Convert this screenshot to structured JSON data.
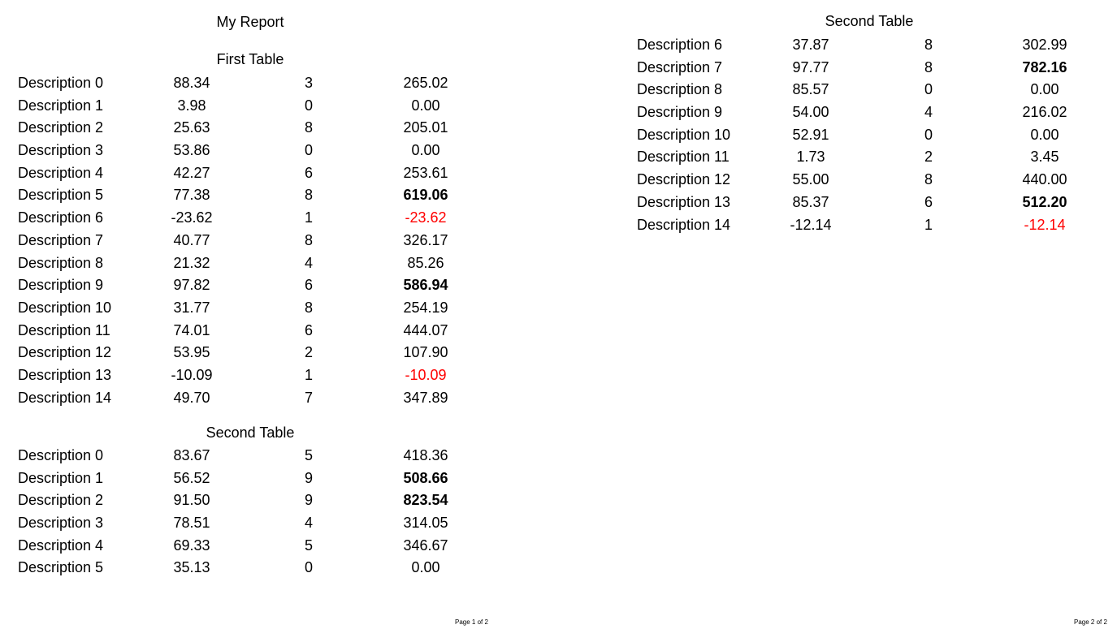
{
  "report_title": "My Report",
  "page1": {
    "first_table": {
      "title": "First Table",
      "rows": [
        {
          "desc": "Description 0",
          "price": "88.34",
          "qty": "3",
          "total": "265.02",
          "style": ""
        },
        {
          "desc": "Description 1",
          "price": "3.98",
          "qty": "0",
          "total": "0.00",
          "style": ""
        },
        {
          "desc": "Description 2",
          "price": "25.63",
          "qty": "8",
          "total": "205.01",
          "style": ""
        },
        {
          "desc": "Description 3",
          "price": "53.86",
          "qty": "0",
          "total": "0.00",
          "style": ""
        },
        {
          "desc": "Description 4",
          "price": "42.27",
          "qty": "6",
          "total": "253.61",
          "style": ""
        },
        {
          "desc": "Description 5",
          "price": "77.38",
          "qty": "8",
          "total": "619.06",
          "style": "bold"
        },
        {
          "desc": "Description 6",
          "price": "-23.62",
          "qty": "1",
          "total": "-23.62",
          "style": "neg"
        },
        {
          "desc": "Description 7",
          "price": "40.77",
          "qty": "8",
          "total": "326.17",
          "style": ""
        },
        {
          "desc": "Description 8",
          "price": "21.32",
          "qty": "4",
          "total": "85.26",
          "style": ""
        },
        {
          "desc": "Description 9",
          "price": "97.82",
          "qty": "6",
          "total": "586.94",
          "style": "bold"
        },
        {
          "desc": "Description 10",
          "price": "31.77",
          "qty": "8",
          "total": "254.19",
          "style": ""
        },
        {
          "desc": "Description 11",
          "price": "74.01",
          "qty": "6",
          "total": "444.07",
          "style": ""
        },
        {
          "desc": "Description 12",
          "price": "53.95",
          "qty": "2",
          "total": "107.90",
          "style": ""
        },
        {
          "desc": "Description 13",
          "price": "-10.09",
          "qty": "1",
          "total": "-10.09",
          "style": "neg"
        },
        {
          "desc": "Description 14",
          "price": "49.70",
          "qty": "7",
          "total": "347.89",
          "style": ""
        }
      ]
    },
    "second_table": {
      "title": "Second Table",
      "rows": [
        {
          "desc": "Description 0",
          "price": "83.67",
          "qty": "5",
          "total": "418.36",
          "style": ""
        },
        {
          "desc": "Description 1",
          "price": "56.52",
          "qty": "9",
          "total": "508.66",
          "style": "bold"
        },
        {
          "desc": "Description 2",
          "price": "91.50",
          "qty": "9",
          "total": "823.54",
          "style": "bold"
        },
        {
          "desc": "Description 3",
          "price": "78.51",
          "qty": "4",
          "total": "314.05",
          "style": ""
        },
        {
          "desc": "Description 4",
          "price": "69.33",
          "qty": "5",
          "total": "346.67",
          "style": ""
        },
        {
          "desc": "Description 5",
          "price": "35.13",
          "qty": "0",
          "total": "0.00",
          "style": ""
        }
      ]
    },
    "footer": "Page 1 of 2"
  },
  "page2": {
    "second_table": {
      "title": "Second Table",
      "rows": [
        {
          "desc": "Description 6",
          "price": "37.87",
          "qty": "8",
          "total": "302.99",
          "style": ""
        },
        {
          "desc": "Description 7",
          "price": "97.77",
          "qty": "8",
          "total": "782.16",
          "style": "bold"
        },
        {
          "desc": "Description 8",
          "price": "85.57",
          "qty": "0",
          "total": "0.00",
          "style": ""
        },
        {
          "desc": "Description 9",
          "price": "54.00",
          "qty": "4",
          "total": "216.02",
          "style": ""
        },
        {
          "desc": "Description 10",
          "price": "52.91",
          "qty": "0",
          "total": "0.00",
          "style": ""
        },
        {
          "desc": "Description 11",
          "price": "1.73",
          "qty": "2",
          "total": "3.45",
          "style": ""
        },
        {
          "desc": "Description 12",
          "price": "55.00",
          "qty": "8",
          "total": "440.00",
          "style": ""
        },
        {
          "desc": "Description 13",
          "price": "85.37",
          "qty": "6",
          "total": "512.20",
          "style": "bold"
        },
        {
          "desc": "Description 14",
          "price": "-12.14",
          "qty": "1",
          "total": "-12.14",
          "style": "neg"
        }
      ]
    },
    "footer": "Page 2 of 2"
  }
}
